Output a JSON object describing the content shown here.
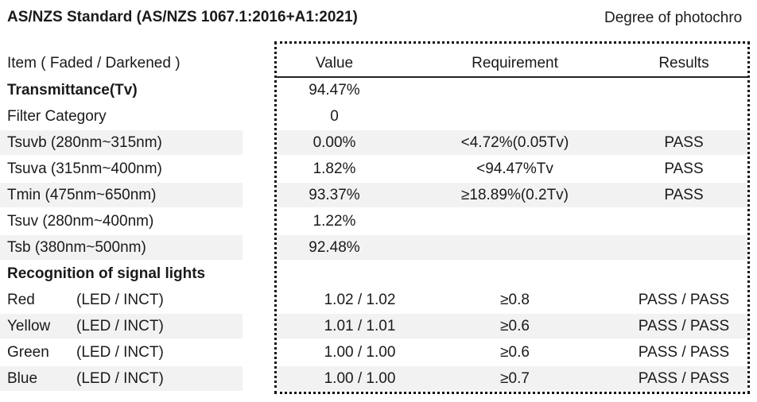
{
  "title": "AS/NZS Standard (AS/NZS 1067.1:2016+A1:2021)",
  "right_title": "Degree of photochro",
  "headers": {
    "item": "Item ( Faded / Darkened )",
    "value": "Value",
    "requirement": "Requirement",
    "results": "Results"
  },
  "rows": [
    {
      "item": "Transmittance(Tv)",
      "value": "94.47%",
      "requirement": "",
      "result": ""
    },
    {
      "item": "Filter Category",
      "value": "0",
      "requirement": "",
      "result": ""
    },
    {
      "item": "Tsuvb (280nm~315nm)",
      "value": "0.00%",
      "requirement": "<4.72%(0.05Tv)",
      "result": "PASS"
    },
    {
      "item": "Tsuva (315nm~400nm)",
      "value": "1.82%",
      "requirement": "<94.47%Tv",
      "result": "PASS"
    },
    {
      "item": "Tmin  (475nm~650nm)",
      "value": "93.37%",
      "requirement": "≥18.89%(0.2Tv)",
      "result": "PASS"
    },
    {
      "item": "Tsuv   (280nm~400nm)",
      "value": "1.22%",
      "requirement": "",
      "result": ""
    },
    {
      "item": "Tsb    (380nm~500nm)",
      "value": "92.48%",
      "requirement": "",
      "result": ""
    },
    {
      "item": "Recognition of signal lights",
      "value": "",
      "requirement": "",
      "result": ""
    }
  ],
  "signals": [
    {
      "color": "Red",
      "type": "(LED / INCT)",
      "value": "1.02 / 1.02",
      "requirement": "≥0.8",
      "result": "PASS / PASS"
    },
    {
      "color": "Yellow",
      "type": "(LED / INCT)",
      "value": "1.01 / 1.01",
      "requirement": "≥0.6",
      "result": "PASS / PASS"
    },
    {
      "color": "Green",
      "type": "(LED / INCT)",
      "value": "1.00 / 1.00",
      "requirement": "≥0.6",
      "result": "PASS / PASS"
    },
    {
      "color": "Blue",
      "type": "(LED / INCT)",
      "value": "1.00 / 1.00",
      "requirement": "≥0.7",
      "result": "PASS / PASS"
    }
  ]
}
